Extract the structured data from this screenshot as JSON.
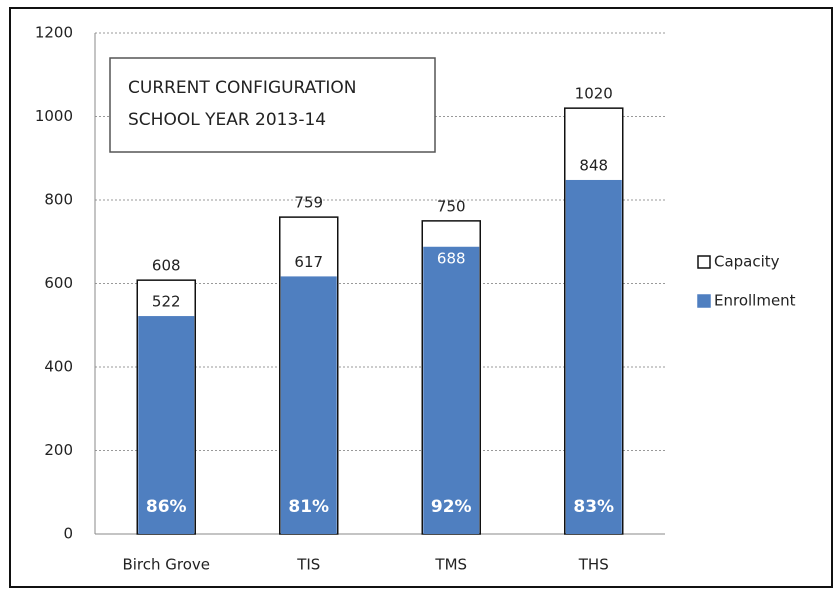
{
  "chart_data": {
    "type": "bar",
    "annotations": [
      "CURRENT CONFIGURATION",
      "SCHOOL YEAR 2013-14"
    ],
    "categories": [
      "Birch Grove",
      "TIS",
      "TMS",
      "THS"
    ],
    "series": [
      {
        "name": "Capacity",
        "color": "#ffffff",
        "values": [
          608,
          759,
          750,
          1020
        ]
      },
      {
        "name": "Enrollment",
        "color": "#4f7fc0",
        "values": [
          522,
          617,
          688,
          848
        ]
      }
    ],
    "percentages": {
      "values": [
        86,
        81,
        92,
        83
      ],
      "labels": [
        "86%",
        "81%",
        "92%",
        "83%"
      ]
    },
    "ylim": [
      0,
      1200
    ],
    "yticks": [
      0,
      200,
      400,
      600,
      800,
      1000,
      1200
    ],
    "grid": true,
    "legend": "right"
  }
}
